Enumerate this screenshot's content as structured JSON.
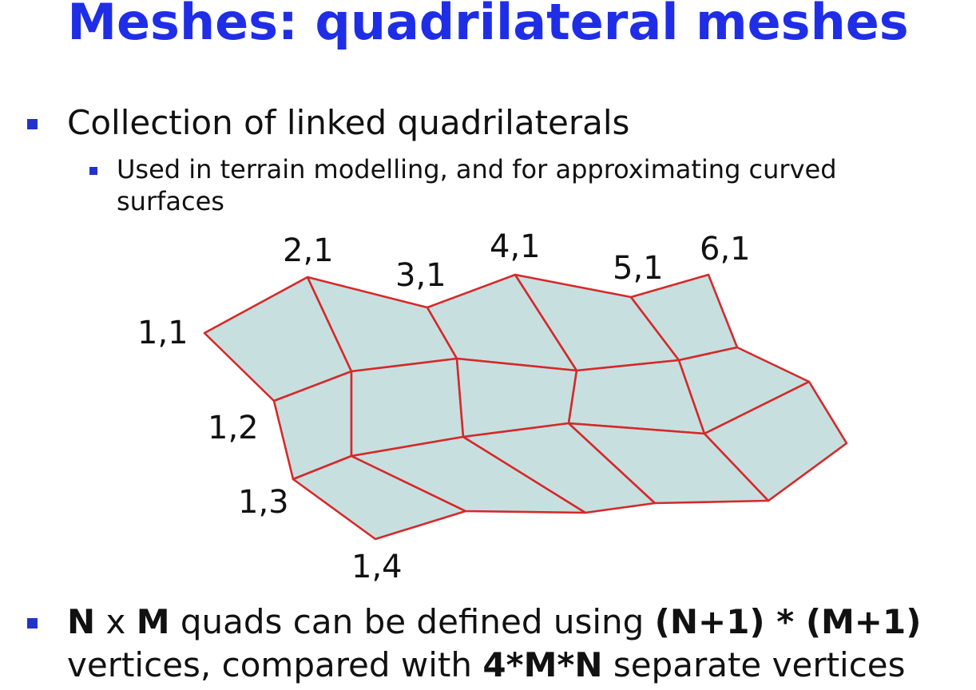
{
  "slide": {
    "title": "Meshes: quadrilateral meshes",
    "bullet1": "Collection of linked quadrilaterals",
    "subbullet1": "Used in terrain modelling, and for approximating curved surfaces",
    "bullet2": {
      "n": "N",
      "x": " x ",
      "m": "M",
      "t1": " quads can be defined using ",
      "formula1": "(N+1) * (M+1)",
      "t2": " vertices, compared with ",
      "formula2": "4*M*N",
      "t3": " separate vertices"
    }
  },
  "mesh_labels": {
    "v11": "1,1",
    "v21": "2,1",
    "v31": "3,1",
    "v41": "4,1",
    "v51": "5,1",
    "v61": "6,1",
    "v12": "1,2",
    "v13": "1,3",
    "v14": "1,4"
  },
  "colors": {
    "title": "#1f2ee6",
    "bullet": "#2233cc",
    "mesh_fill": "#c8dfe0",
    "mesh_edge": "#d42a2a"
  }
}
